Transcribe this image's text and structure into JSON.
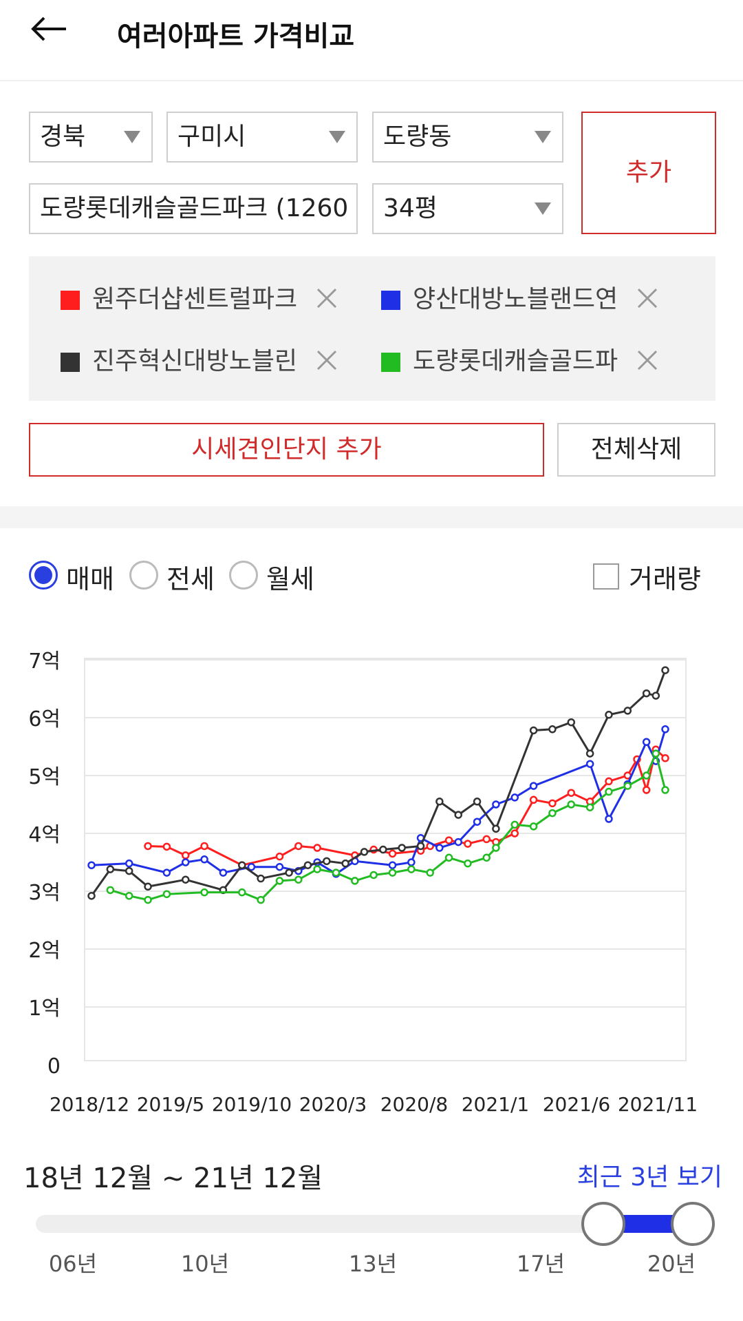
{
  "header": {
    "title": "여러아파트 가격비교",
    "back_icon": "arrow-left-icon"
  },
  "filters": {
    "province": "경북",
    "city": "구미시",
    "dong": "도량동",
    "complex": "도량롯데캐슬골드파크 (1260",
    "size": "34평",
    "add_label": "추가"
  },
  "compare_items": [
    {
      "label": "원주더샵센트럴파크",
      "color": "#ff1e1e"
    },
    {
      "label": "양산대방노블랜드연",
      "color": "#1f2fe6"
    },
    {
      "label": "진주혁신대방노블린",
      "color": "#333333"
    },
    {
      "label": "도량롯데캐슬골드파",
      "color": "#22bb22"
    }
  ],
  "actions": {
    "add_similar": "시세견인단지 추가",
    "delete_all": "전체삭제"
  },
  "trade_types": {
    "selected": "매매",
    "options": [
      "매매",
      "전세",
      "월세"
    ]
  },
  "volume_label": "거래량",
  "chart_data": {
    "type": "line",
    "y_ticks": [
      "0",
      "1억",
      "2억",
      "3억",
      "4억",
      "5억",
      "6억",
      "7억"
    ],
    "x_ticks": [
      "2018/12",
      "2019/5",
      "2019/10",
      "2020/3",
      "2020/8",
      "2021/1",
      "2021/6",
      "2021/11"
    ],
    "ylim": [
      0,
      7
    ],
    "grid": true,
    "series": [
      {
        "name": "원주더샵센트럴파크",
        "color": "#ff1e1e",
        "x": [
          2019.25,
          2019.35,
          2019.45,
          2019.55,
          2019.75,
          2019.95,
          2020.05,
          2020.15,
          2020.35,
          2020.45,
          2020.55,
          2020.7,
          2020.75,
          2020.85,
          2020.95,
          2021.05,
          2021.1,
          2021.2,
          2021.3,
          2021.4,
          2021.5,
          2021.6,
          2021.7,
          2021.8,
          2021.85,
          2021.9,
          2021.95,
          2022.0
        ],
        "y": [
          3.78,
          3.77,
          3.62,
          3.78,
          3.45,
          3.6,
          3.78,
          3.75,
          3.62,
          3.72,
          3.65,
          3.7,
          3.78,
          3.88,
          3.82,
          3.9,
          3.85,
          4.0,
          4.58,
          4.52,
          4.7,
          4.55,
          4.9,
          5.0,
          5.28,
          4.75,
          5.45,
          5.3
        ]
      },
      {
        "name": "양산대방노블랜드연",
        "color": "#1f2fe6",
        "x": [
          2018.95,
          2019.15,
          2019.35,
          2019.45,
          2019.55,
          2019.65,
          2019.8,
          2019.95,
          2020.05,
          2020.15,
          2020.25,
          2020.35,
          2020.55,
          2020.65,
          2020.7,
          2020.8,
          2020.9,
          2021.0,
          2021.1,
          2021.2,
          2021.3,
          2021.6,
          2021.7,
          2021.8,
          2021.9,
          2021.95,
          2022.0
        ],
        "y": [
          3.45,
          3.48,
          3.32,
          3.5,
          3.55,
          3.32,
          3.42,
          3.42,
          3.35,
          3.5,
          3.3,
          3.52,
          3.45,
          3.5,
          3.92,
          3.75,
          3.85,
          4.2,
          4.5,
          4.62,
          4.82,
          5.2,
          4.25,
          4.85,
          5.58,
          5.25,
          5.8
        ]
      },
      {
        "name": "진주혁신대방노블린",
        "color": "#333333",
        "x": [
          2018.95,
          2019.05,
          2019.15,
          2019.25,
          2019.45,
          2019.65,
          2019.75,
          2019.85,
          2020.0,
          2020.1,
          2020.2,
          2020.3,
          2020.4,
          2020.5,
          2020.6,
          2020.7,
          2020.8,
          2020.9,
          2021.0,
          2021.1,
          2021.3,
          2021.4,
          2021.5,
          2021.6,
          2021.7,
          2021.8,
          2021.9,
          2021.95,
          2022.0
        ],
        "y": [
          2.92,
          3.38,
          3.35,
          3.08,
          3.2,
          3.02,
          3.45,
          3.22,
          3.32,
          3.45,
          3.52,
          3.48,
          3.68,
          3.72,
          3.75,
          3.78,
          4.55,
          4.32,
          4.55,
          4.08,
          5.78,
          5.8,
          5.92,
          5.38,
          6.05,
          6.12,
          6.42,
          6.38,
          6.82
        ]
      },
      {
        "name": "도량롯데캐슬골드파",
        "color": "#22bb22",
        "x": [
          2019.05,
          2019.15,
          2019.25,
          2019.35,
          2019.55,
          2019.75,
          2019.85,
          2019.95,
          2020.05,
          2020.15,
          2020.25,
          2020.35,
          2020.45,
          2020.55,
          2020.65,
          2020.75,
          2020.85,
          2020.95,
          2021.05,
          2021.1,
          2021.2,
          2021.3,
          2021.4,
          2021.5,
          2021.6,
          2021.7,
          2021.8,
          2021.9,
          2021.95,
          2022.0
        ],
        "y": [
          3.02,
          2.92,
          2.85,
          2.95,
          2.98,
          2.98,
          2.85,
          3.18,
          3.2,
          3.38,
          3.32,
          3.18,
          3.28,
          3.32,
          3.38,
          3.32,
          3.58,
          3.48,
          3.58,
          3.75,
          4.15,
          4.12,
          4.35,
          4.5,
          4.45,
          4.72,
          4.82,
          5.0,
          5.38,
          4.75
        ]
      }
    ]
  },
  "range": {
    "text": "18년 12월 ~ 21년 12월",
    "recent_label": "최근 3년 보기",
    "year_labels": [
      "06년",
      "10년",
      "13년",
      "17년",
      "20년"
    ]
  }
}
